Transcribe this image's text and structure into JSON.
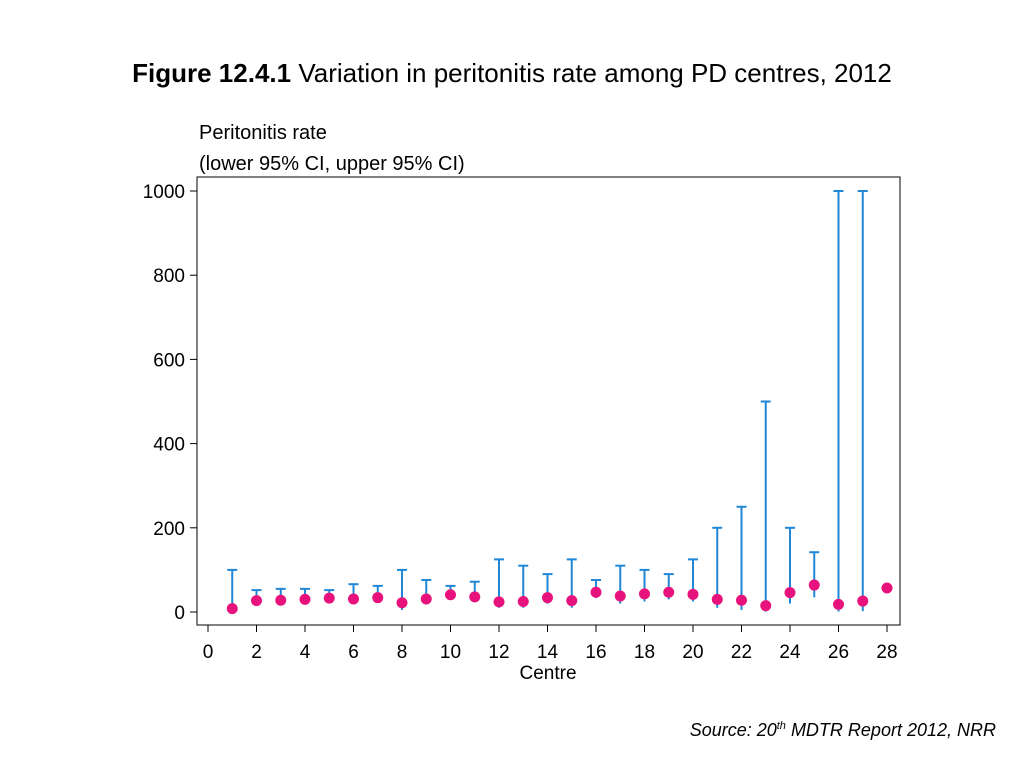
{
  "figure": {
    "label": "Figure 12.4.1",
    "caption": "Variation in peritonitis rate among PD centres, 2012"
  },
  "source": {
    "prefix": "Source: 20",
    "superscript": "th",
    "suffix": " MDTR Report 2012, NRR"
  },
  "chart_data": {
    "type": "scatter",
    "ylabel_line1": "Peritonitis rate",
    "ylabel_line2": "(lower 95% CI, upper 95% CI)",
    "xlabel": "Centre",
    "xlim": [
      0,
      28
    ],
    "ylim": [
      0,
      1000
    ],
    "xticks": [
      0,
      2,
      4,
      6,
      8,
      10,
      12,
      14,
      16,
      18,
      20,
      22,
      24,
      26,
      28
    ],
    "yticks": [
      0,
      200,
      400,
      600,
      800,
      1000
    ],
    "grid": false,
    "point_color": "#e8127c",
    "ci_color": "#1f87d6",
    "series": [
      {
        "x": [
          1,
          2,
          3,
          4,
          5,
          6,
          7,
          8,
          9,
          10,
          11,
          12,
          13,
          14,
          15,
          16,
          17,
          18,
          19,
          20,
          21,
          22,
          23,
          24,
          25,
          26,
          27,
          28
        ],
        "rate": [
          8,
          27,
          28,
          30,
          33,
          31,
          34,
          22,
          31,
          41,
          36,
          24,
          25,
          34,
          27,
          47,
          38,
          43,
          47,
          42,
          30,
          28,
          15,
          46,
          64,
          18,
          26,
          57
        ],
        "lower": [
          2,
          20,
          20,
          22,
          25,
          20,
          23,
          5,
          18,
          30,
          25,
          10,
          10,
          20,
          10,
          33,
          20,
          25,
          30,
          25,
          10,
          5,
          1,
          20,
          35,
          1,
          2,
          57
        ],
        "upper": [
          100,
          52,
          55,
          55,
          52,
          66,
          62,
          100,
          76,
          62,
          72,
          125,
          110,
          90,
          125,
          76,
          110,
          100,
          90,
          125,
          200,
          250,
          500,
          200,
          142,
          1000,
          1000,
          57
        ]
      }
    ]
  }
}
